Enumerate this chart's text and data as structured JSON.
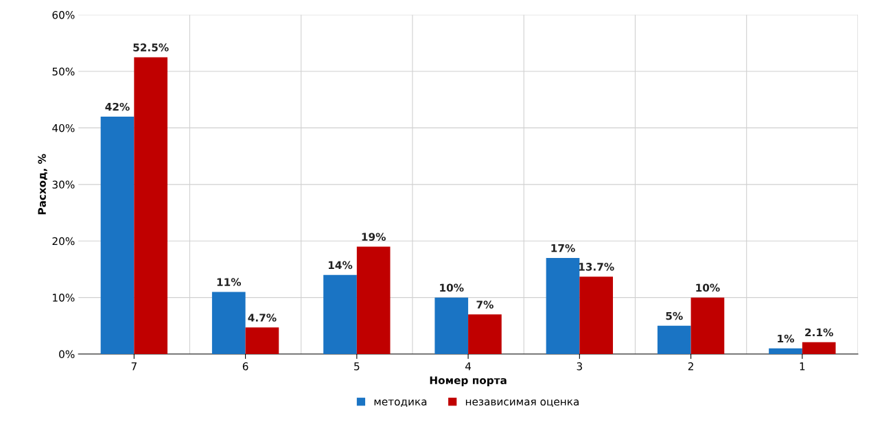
{
  "chart_data": {
    "type": "bar",
    "xlabel": "Номер порта",
    "ylabel": "Расход, %",
    "categories": [
      "7",
      "6",
      "5",
      "4",
      "3",
      "2",
      "1"
    ],
    "series": [
      {
        "name": "методика",
        "color": "#1a74c4",
        "values": [
          42,
          11,
          14,
          10,
          17,
          5,
          1
        ],
        "value_labels": [
          "42%",
          "11%",
          "14%",
          "10%",
          "17%",
          "5%",
          "1%"
        ]
      },
      {
        "name": "независимая оценка",
        "color": "#c00000",
        "values": [
          52.5,
          4.7,
          19,
          7,
          13.7,
          10,
          2.1
        ],
        "value_labels": [
          "52.5%",
          "4.7%",
          "19%",
          "7%",
          "13.7%",
          "10%",
          "2.1%"
        ]
      }
    ],
    "ylim": [
      0,
      60
    ],
    "yticks": [
      {
        "value": 0,
        "label": "0%"
      },
      {
        "value": 10,
        "label": "10%"
      },
      {
        "value": 20,
        "label": "20%"
      },
      {
        "value": 30,
        "label": "30%"
      },
      {
        "value": 40,
        "label": "40%"
      },
      {
        "value": 50,
        "label": "50%"
      },
      {
        "value": 60,
        "label": "60%"
      }
    ],
    "grid": true,
    "legend": "bottom"
  }
}
